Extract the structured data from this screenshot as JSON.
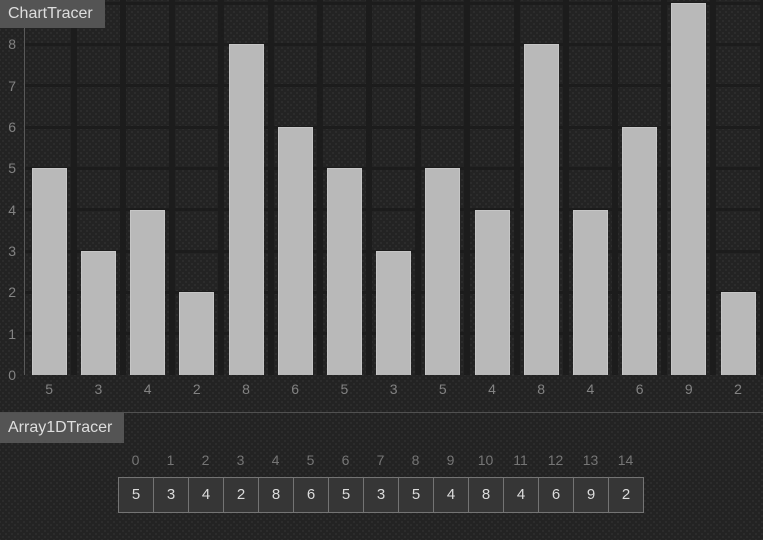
{
  "chart_tracer": {
    "label": "ChartTracer"
  },
  "chart_data": {
    "type": "bar",
    "categories": [
      "5",
      "3",
      "4",
      "2",
      "8",
      "6",
      "5",
      "3",
      "5",
      "4",
      "8",
      "4",
      "6",
      "9",
      "2"
    ],
    "values": [
      5,
      3,
      4,
      2,
      8,
      6,
      5,
      3,
      5,
      4,
      8,
      4,
      6,
      9,
      2
    ],
    "title": "",
    "xlabel": "",
    "ylabel": "",
    "ylim": [
      0,
      9
    ],
    "y_ticks": [
      0,
      1,
      2,
      3,
      4,
      5,
      6,
      7,
      8
    ],
    "grid": true,
    "legend": false,
    "bar_color": "#b9b9b9"
  },
  "array_tracer": {
    "label": "Array1DTracer",
    "indices": [
      "0",
      "1",
      "2",
      "3",
      "4",
      "5",
      "6",
      "7",
      "8",
      "9",
      "10",
      "11",
      "12",
      "13",
      "14"
    ],
    "values": [
      "5",
      "3",
      "4",
      "2",
      "8",
      "6",
      "5",
      "3",
      "5",
      "4",
      "8",
      "4",
      "6",
      "9",
      "2"
    ]
  },
  "colors": {
    "background": "#232323",
    "dot": "#2d2d2d",
    "grid_line": "#1c1c1c",
    "axis_line": "#5a5a5a",
    "bar_fill": "#b9b9b9",
    "bar_border": "#c6c6c6",
    "label_box_bg": "#545454",
    "label_box_text": "#dedede",
    "tick_text": "#828282",
    "index_text": "#757575",
    "divider": "#515151",
    "cell_bg": "#363636",
    "cell_border": "#747474",
    "cell_text": "#dcdcdc"
  }
}
